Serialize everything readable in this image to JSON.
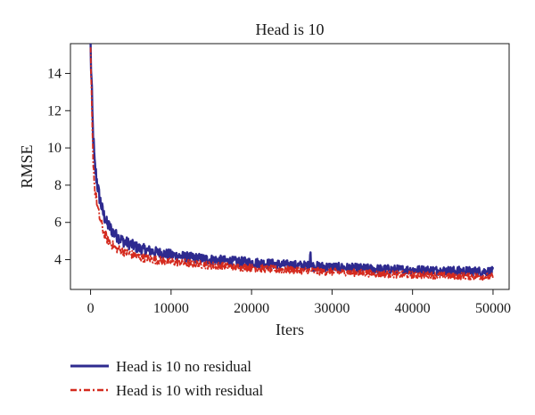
{
  "chart_data": {
    "type": "line",
    "title": "Head is 10",
    "xlabel": "Iters",
    "ylabel": "RMSE",
    "xlim": [
      -2500,
      52000
    ],
    "ylim": [
      2.4,
      15.6
    ],
    "xticks": [
      0,
      10000,
      20000,
      30000,
      40000,
      50000
    ],
    "yticks": [
      4,
      6,
      8,
      10,
      12,
      14
    ],
    "grid": false,
    "legend_position": "bottom-left, below plot",
    "series": [
      {
        "name": "Head is 10 no residual",
        "color": "#2e2a8f",
        "dash": "solid",
        "x": [
          0,
          250,
          500,
          1000,
          1500,
          2000,
          3000,
          4000,
          5000,
          6000,
          8000,
          10000,
          12500,
          15000,
          17500,
          20000,
          22500,
          25000,
          27500,
          30000,
          32500,
          35000,
          37500,
          40000,
          42500,
          45000,
          47500,
          50000
        ],
        "y": [
          15.2,
          11.2,
          9.0,
          7.5,
          6.5,
          5.9,
          5.3,
          4.95,
          4.75,
          4.55,
          4.35,
          4.2,
          4.05,
          3.95,
          3.85,
          3.8,
          3.72,
          3.65,
          3.6,
          3.55,
          3.5,
          3.45,
          3.42,
          3.4,
          3.38,
          3.35,
          3.33,
          3.32
        ]
      },
      {
        "name": "Head is 10 with residual",
        "color": "#d42a1e",
        "dash": "dash-dot",
        "x": [
          0,
          250,
          500,
          1000,
          1500,
          2000,
          3000,
          4000,
          5000,
          6000,
          8000,
          10000,
          12500,
          15000,
          17500,
          20000,
          22500,
          25000,
          27500,
          30000,
          32500,
          35000,
          37500,
          40000,
          42500,
          45000,
          47500,
          50000
        ],
        "y": [
          14.7,
          10.0,
          7.8,
          6.4,
          5.6,
          5.1,
          4.6,
          4.4,
          4.25,
          4.1,
          3.95,
          3.85,
          3.75,
          3.65,
          3.58,
          3.52,
          3.45,
          3.4,
          3.35,
          3.3,
          3.27,
          3.22,
          3.18,
          3.15,
          3.12,
          3.1,
          3.07,
          3.05
        ]
      }
    ]
  }
}
